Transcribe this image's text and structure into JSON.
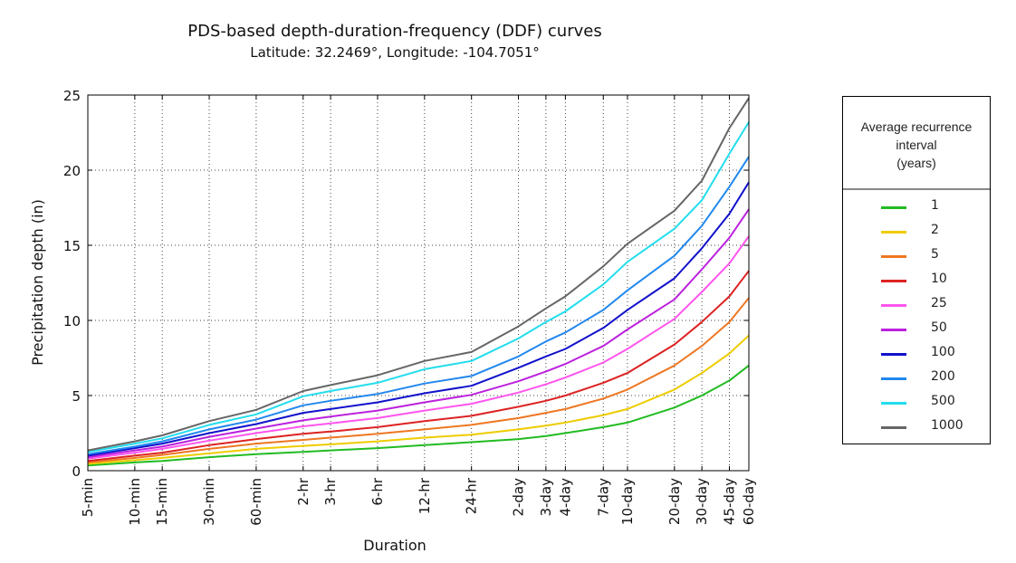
{
  "chart_data": {
    "type": "line",
    "title": "PDS-based depth-duration-frequency (DDF) curves",
    "subtitle": "Latitude: 32.2469°, Longitude: -104.7051°",
    "xlabel": "Duration",
    "ylabel": "Precipitation depth (in)",
    "x": [
      "5-min",
      "10-min",
      "15-min",
      "30-min",
      "60-min",
      "2-hr",
      "3-hr",
      "6-hr",
      "12-hr",
      "24-hr",
      "2-day",
      "3-day",
      "4-day",
      "7-day",
      "10-day",
      "20-day",
      "30-day",
      "45-day",
      "60-day"
    ],
    "ylim": [
      0,
      25
    ],
    "yticks": [
      0,
      5,
      10,
      15,
      20,
      25
    ],
    "grid": true,
    "legend_title": "Average recurrence interval (years)",
    "legend_title_lines": [
      "Average recurrence",
      "interval",
      "(years)"
    ],
    "legend_position": "right",
    "series": [
      {
        "name": "1",
        "color": "#22bb22",
        "values": [
          0.35,
          0.55,
          0.65,
          0.9,
          1.1,
          1.25,
          1.35,
          1.5,
          1.7,
          1.9,
          2.1,
          2.3,
          2.5,
          2.9,
          3.2,
          4.2,
          5.0,
          6.0,
          7.0
        ]
      },
      {
        "name": "2",
        "color": "#eecc00",
        "values": [
          0.45,
          0.7,
          0.85,
          1.15,
          1.45,
          1.65,
          1.75,
          1.95,
          2.2,
          2.4,
          2.75,
          3.0,
          3.2,
          3.7,
          4.1,
          5.4,
          6.5,
          7.8,
          9.0
        ]
      },
      {
        "name": "5",
        "color": "#ee7722",
        "values": [
          0.55,
          0.85,
          1.05,
          1.45,
          1.8,
          2.05,
          2.2,
          2.45,
          2.75,
          3.05,
          3.5,
          3.85,
          4.1,
          4.8,
          5.4,
          7.0,
          8.3,
          9.9,
          11.5
        ]
      },
      {
        "name": "10",
        "color": "#dd2222",
        "values": [
          0.65,
          1.0,
          1.2,
          1.7,
          2.1,
          2.45,
          2.6,
          2.9,
          3.3,
          3.65,
          4.25,
          4.65,
          5.0,
          5.85,
          6.5,
          8.4,
          9.9,
          11.6,
          13.3
        ]
      },
      {
        "name": "25",
        "color": "#ff55ee",
        "values": [
          0.8,
          1.2,
          1.45,
          2.0,
          2.5,
          2.95,
          3.15,
          3.5,
          4.0,
          4.45,
          5.2,
          5.75,
          6.2,
          7.2,
          8.1,
          10.1,
          11.9,
          13.8,
          15.6
        ]
      },
      {
        "name": "50",
        "color": "#bb22dd",
        "values": [
          0.9,
          1.35,
          1.6,
          2.25,
          2.8,
          3.35,
          3.6,
          4.0,
          4.55,
          5.05,
          5.95,
          6.6,
          7.1,
          8.3,
          9.4,
          11.4,
          13.4,
          15.5,
          17.4
        ]
      },
      {
        "name": "100",
        "color": "#1111cc",
        "values": [
          1.0,
          1.5,
          1.8,
          2.5,
          3.1,
          3.85,
          4.1,
          4.55,
          5.15,
          5.65,
          6.85,
          7.6,
          8.1,
          9.5,
          10.7,
          12.8,
          14.8,
          17.1,
          19.2
        ]
      },
      {
        "name": "200",
        "color": "#2288ee",
        "values": [
          1.1,
          1.6,
          1.95,
          2.75,
          3.4,
          4.35,
          4.65,
          5.1,
          5.8,
          6.3,
          7.6,
          8.6,
          9.2,
          10.7,
          12.0,
          14.3,
          16.3,
          18.9,
          20.9
        ]
      },
      {
        "name": "500",
        "color": "#22ddee",
        "values": [
          1.25,
          1.8,
          2.15,
          3.05,
          3.75,
          4.95,
          5.3,
          5.85,
          6.75,
          7.3,
          8.8,
          9.9,
          10.6,
          12.4,
          13.9,
          16.1,
          18.0,
          21.1,
          23.2
        ]
      },
      {
        "name": "1000",
        "color": "#666666",
        "values": [
          1.35,
          1.95,
          2.35,
          3.3,
          4.05,
          5.3,
          5.7,
          6.35,
          7.3,
          7.9,
          9.6,
          10.8,
          11.6,
          13.6,
          15.1,
          17.3,
          19.3,
          22.8,
          24.8
        ]
      }
    ]
  }
}
